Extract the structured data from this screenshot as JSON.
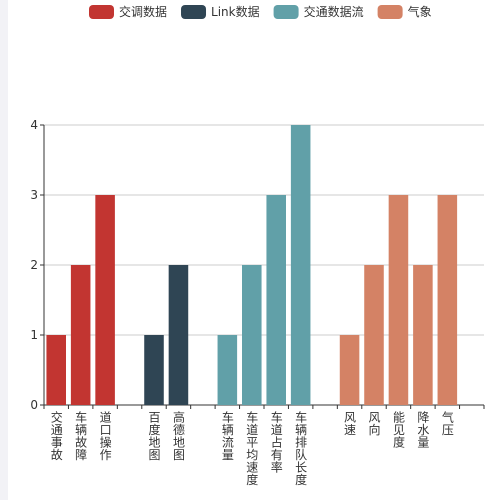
{
  "chart_data": {
    "type": "bar",
    "categories": [
      "交通事故",
      "车辆故障",
      "道口操作",
      null,
      "百度地图",
      "高德地图",
      null,
      "车辆流量",
      "车道平均速度",
      "车道占有率",
      "车辆排队长度",
      null,
      "风速",
      "风向",
      "能见度",
      "降水量",
      "气压",
      null
    ],
    "series": [
      {
        "name": "交调数据",
        "color": "#c23531",
        "values": [
          1,
          2,
          3,
          null,
          null,
          null,
          null,
          null,
          null,
          null,
          null,
          null,
          null,
          null,
          null,
          null,
          null,
          null
        ]
      },
      {
        "name": "Link数据",
        "color": "#2f4554",
        "values": [
          null,
          null,
          null,
          null,
          1,
          2,
          null,
          null,
          null,
          null,
          null,
          null,
          null,
          null,
          null,
          null,
          null,
          null
        ]
      },
      {
        "name": "交通数据流",
        "color": "#61a0a8",
        "values": [
          null,
          null,
          null,
          null,
          null,
          null,
          null,
          1,
          2,
          3,
          4,
          null,
          null,
          null,
          null,
          null,
          null,
          null
        ]
      },
      {
        "name": "气象",
        "color": "#d48265",
        "values": [
          null,
          null,
          null,
          null,
          null,
          null,
          null,
          null,
          null,
          null,
          null,
          null,
          1,
          2,
          3,
          2,
          3,
          null
        ]
      }
    ],
    "ylim": [
      0,
      4
    ],
    "yticks": [
      0,
      1,
      2,
      3,
      4
    ],
    "grid": true,
    "legend": "top"
  }
}
